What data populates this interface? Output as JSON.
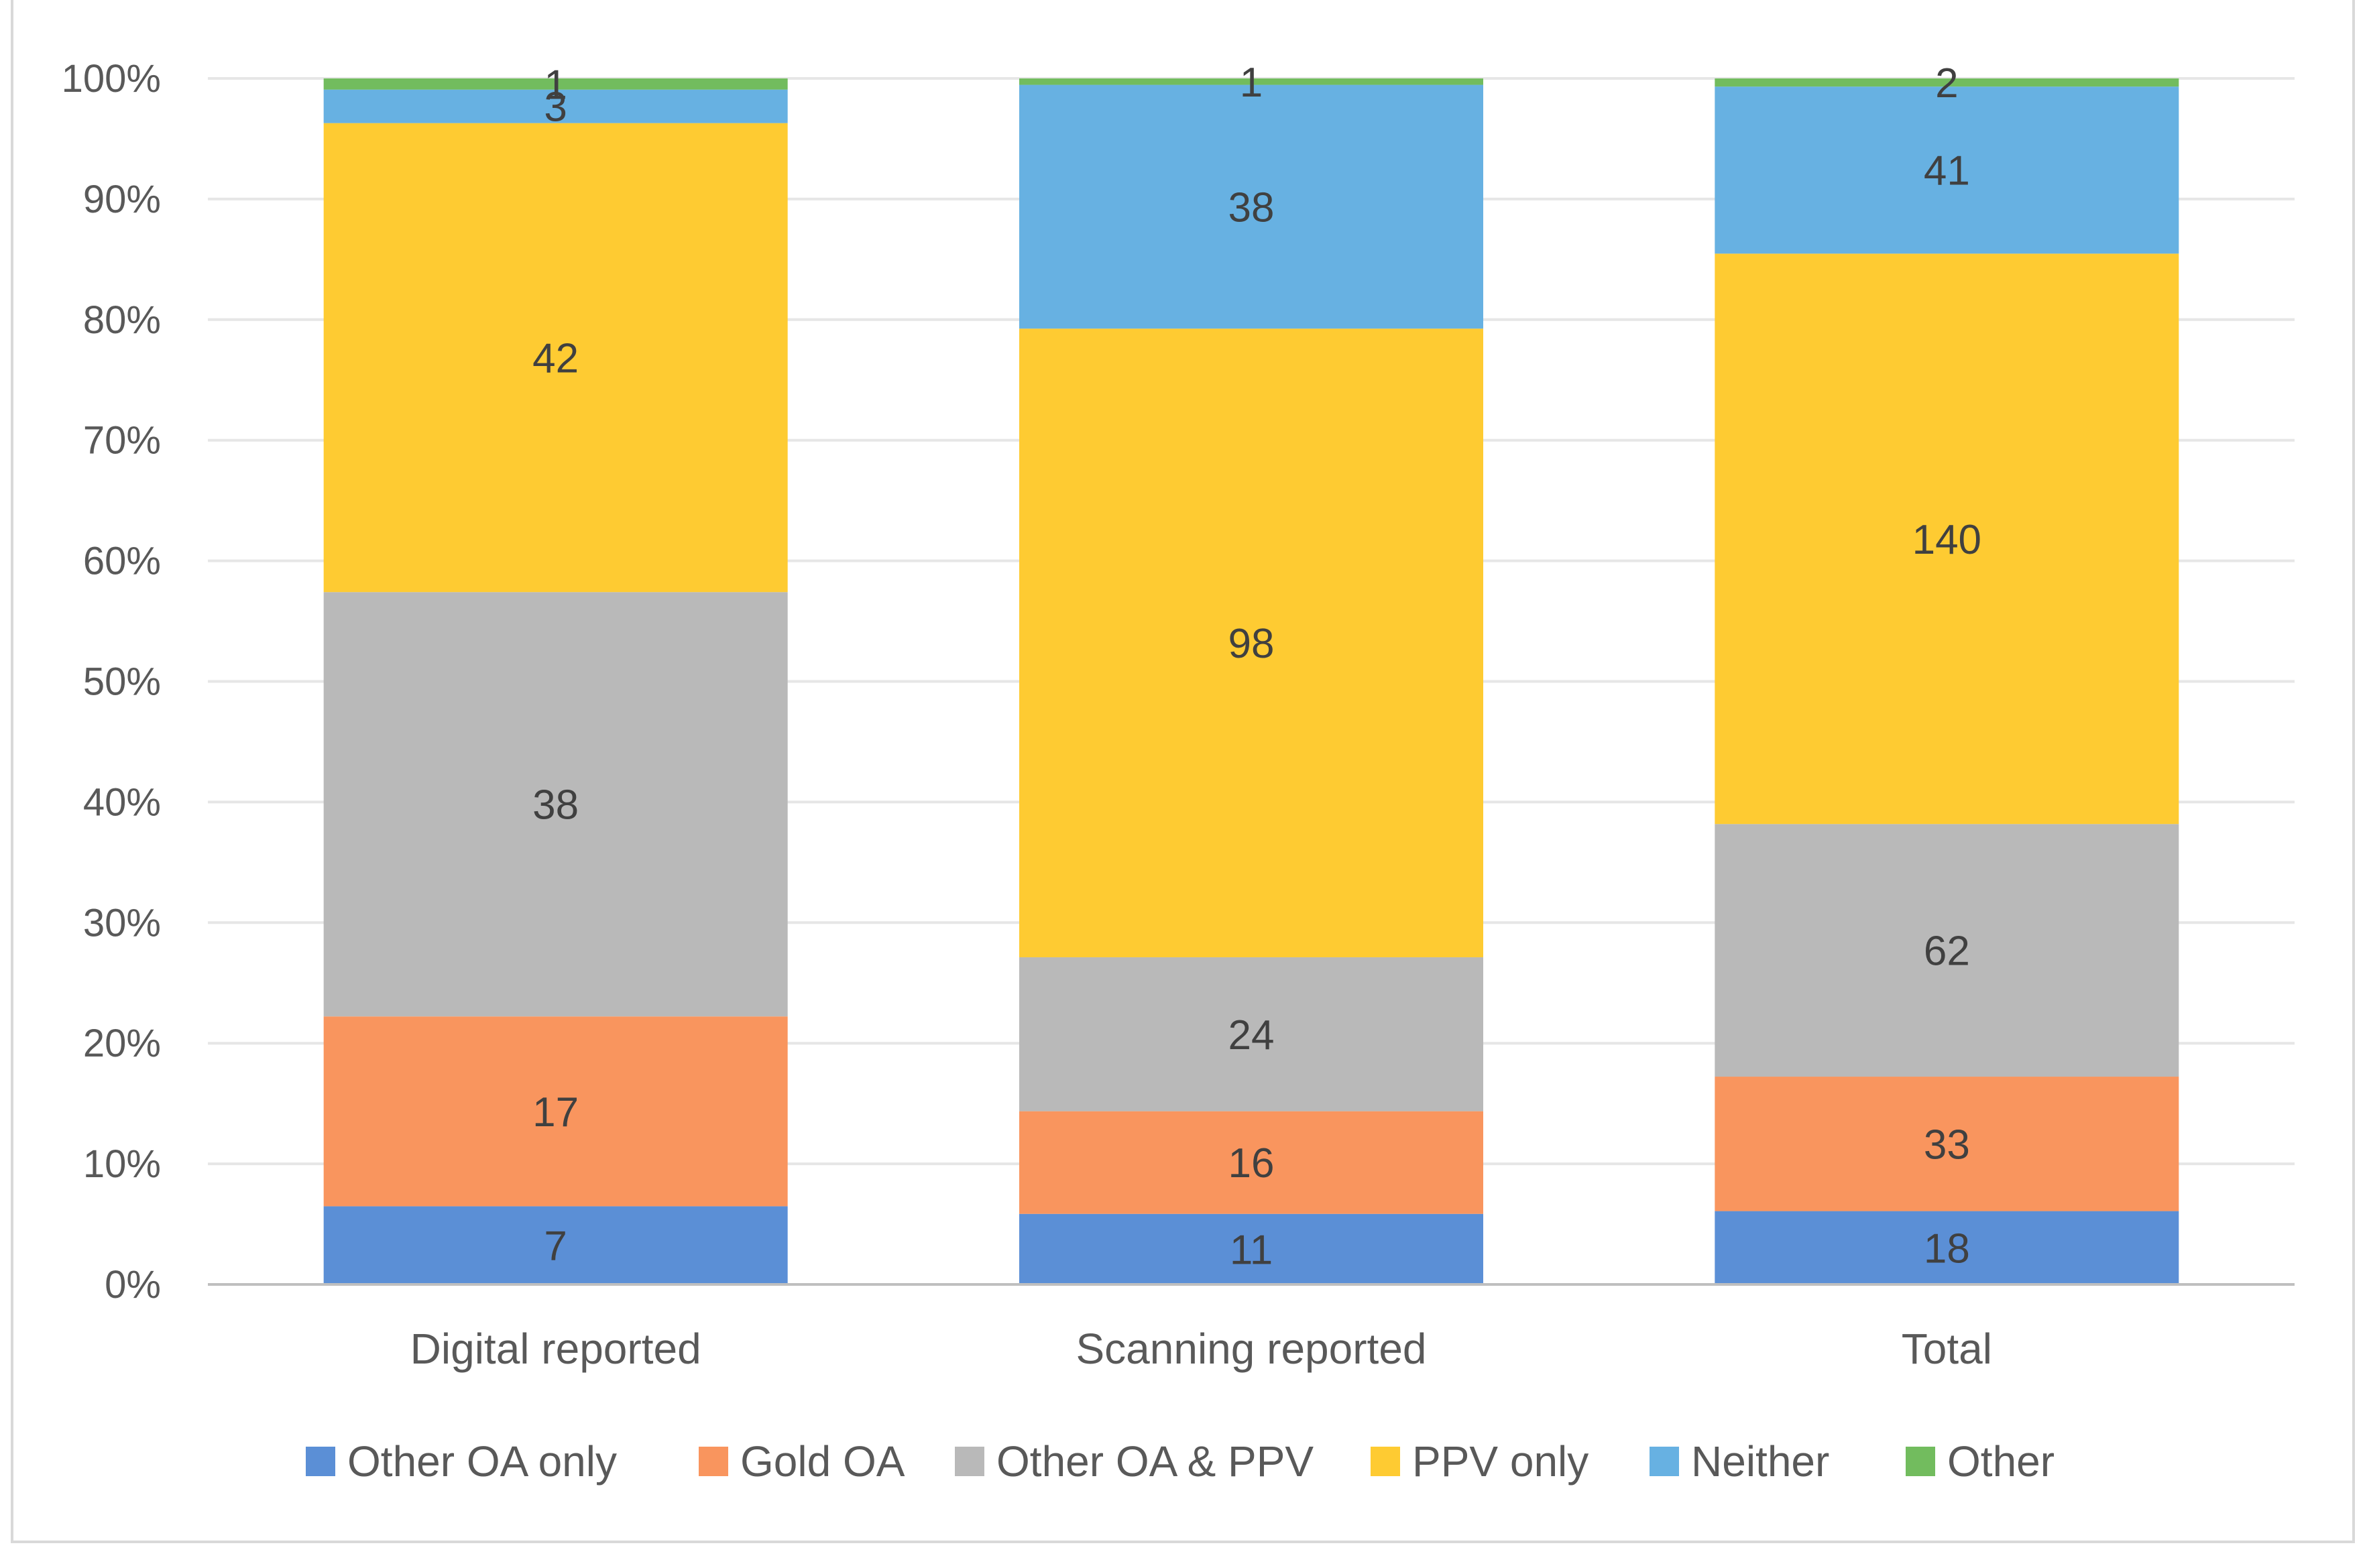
{
  "chart_data": {
    "type": "bar",
    "stacking": "percent",
    "categories": [
      "Digital reported",
      "Scanning reported",
      "Total"
    ],
    "series": [
      {
        "name": "Other OA only",
        "color": "#5b8fd6",
        "values": [
          7,
          11,
          18
        ]
      },
      {
        "name": "Gold OA",
        "color": "#f9955e",
        "values": [
          17,
          16,
          33
        ]
      },
      {
        "name": "Other OA & PPV",
        "color": "#b9b9b9",
        "values": [
          38,
          24,
          62
        ]
      },
      {
        "name": "PPV only",
        "color": "#fecb32",
        "values": [
          42,
          98,
          140
        ]
      },
      {
        "name": "Neither",
        "color": "#67b1e2",
        "values": [
          3,
          38,
          41
        ]
      },
      {
        "name": "Other",
        "color": "#72bc5e",
        "values": [
          1,
          1,
          2
        ]
      }
    ],
    "y_ticks": [
      "0%",
      "10%",
      "20%",
      "30%",
      "40%",
      "50%",
      "60%",
      "70%",
      "80%",
      "90%",
      "100%"
    ],
    "ylim": [
      0,
      100
    ],
    "grid": true,
    "legend_position": "bottom",
    "title": "",
    "xlabel": "",
    "ylabel": ""
  }
}
